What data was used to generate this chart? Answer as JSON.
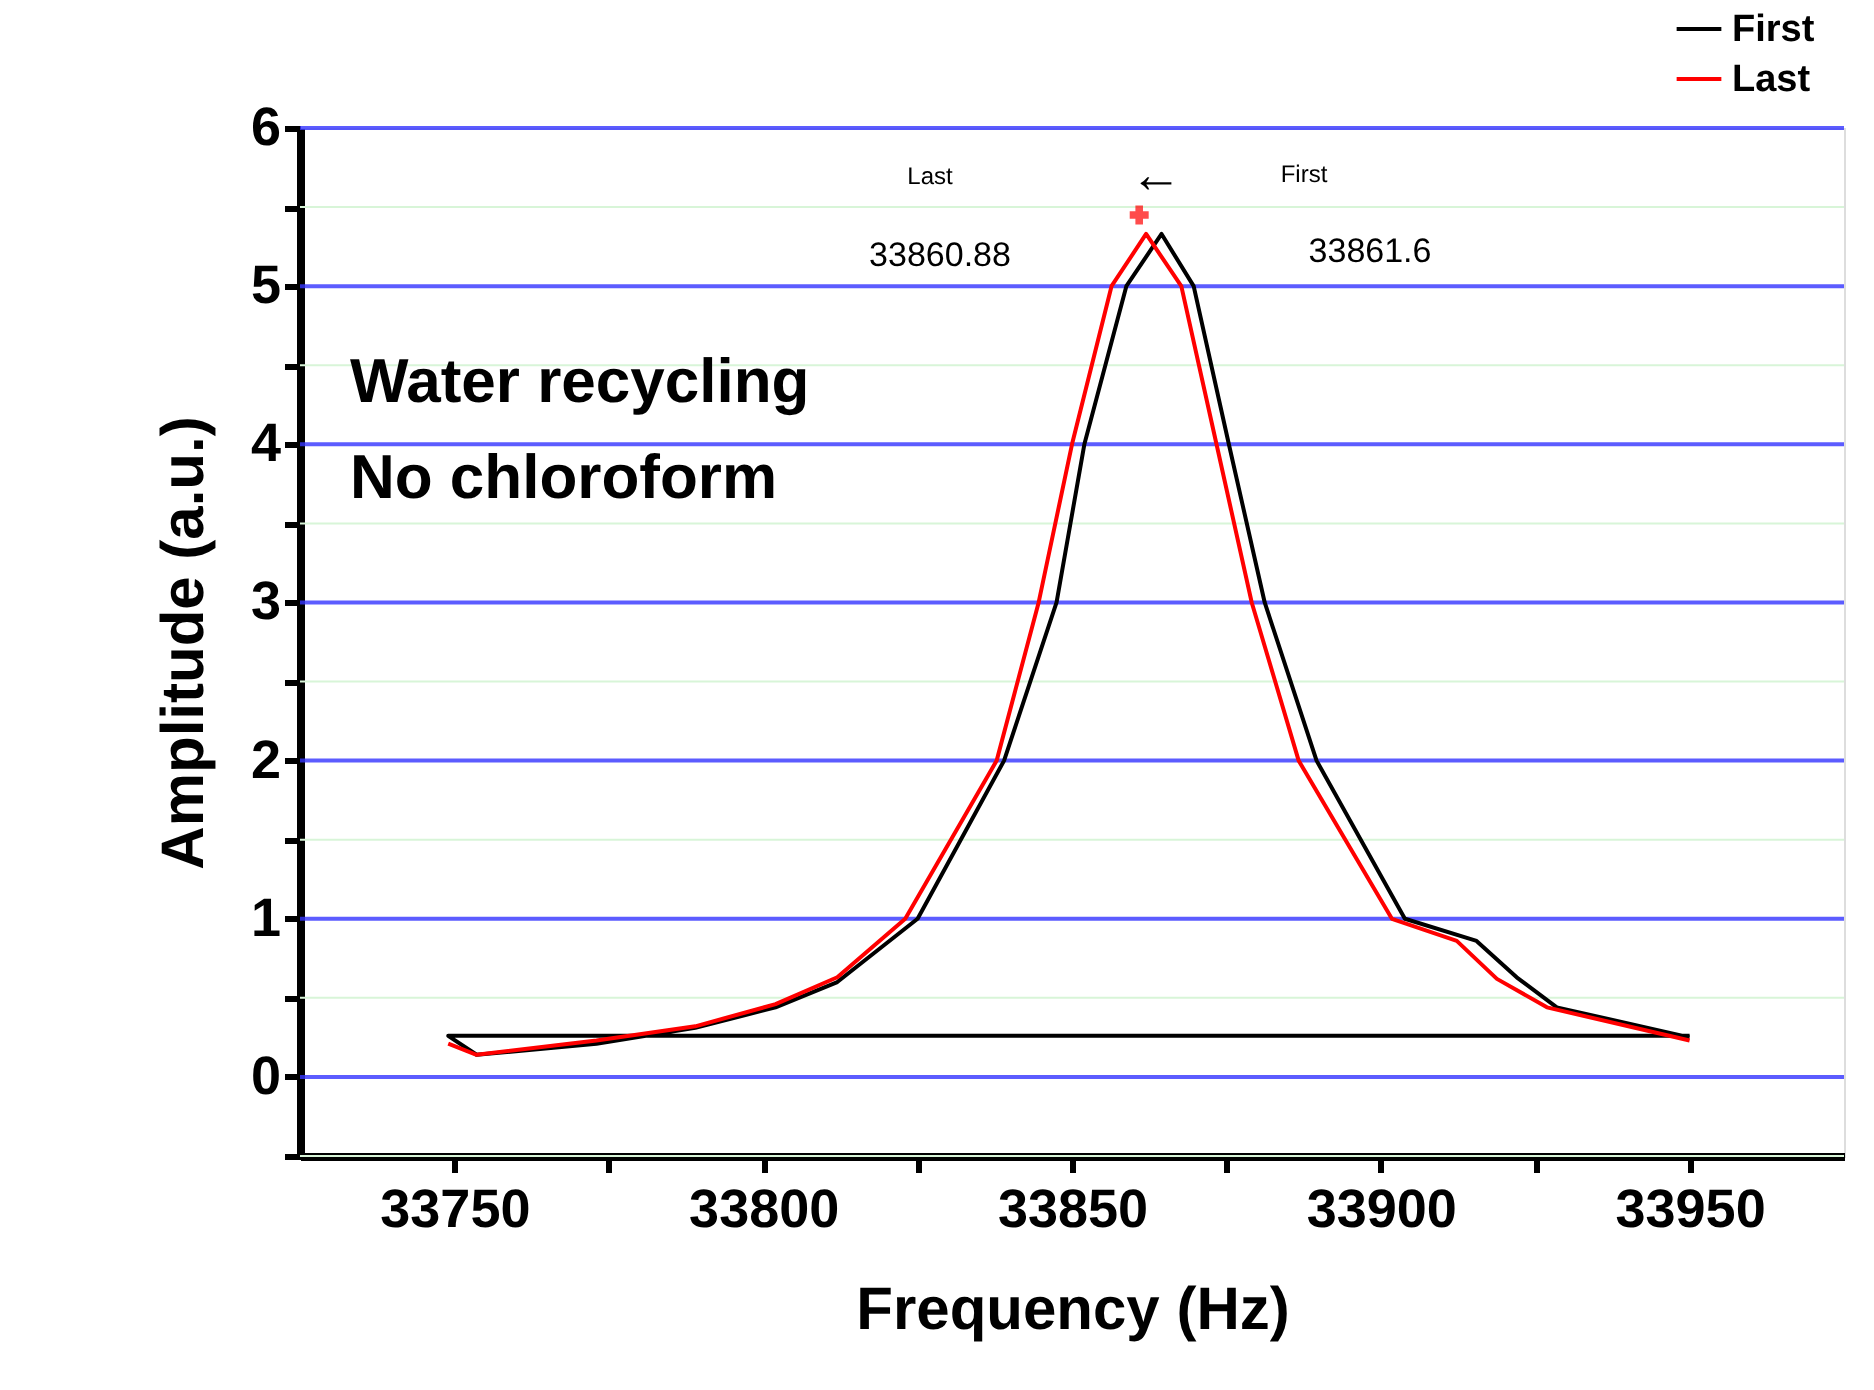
{
  "chart_data": {
    "type": "line",
    "xlabel": "Frequency (Hz)",
    "ylabel": "Amplitude (a.u.)",
    "xlim": [
      33725,
      33975
    ],
    "ylim": [
      -0.5,
      6
    ],
    "xticks": [
      33750,
      {
        "value": 33775,
        "label": null
      },
      33800,
      {
        "value": 33825,
        "label": null
      },
      33850,
      {
        "value": 33875,
        "label": null
      },
      33900,
      {
        "value": 33925,
        "label": null
      },
      33950
    ],
    "yticks": [
      {
        "value": -0.5,
        "label": null
      },
      0,
      {
        "value": 0.5,
        "label": null
      },
      1,
      {
        "value": 1.5,
        "label": null
      },
      2,
      {
        "value": 2.5,
        "label": null
      },
      3,
      {
        "value": 3.5,
        "label": null
      },
      4,
      {
        "value": 4.5,
        "label": null
      },
      5,
      {
        "value": 5.5,
        "label": null
      },
      6
    ],
    "grid": "y",
    "legend": "top right",
    "marker": "none",
    "line_style": "solid",
    "series": [
      {
        "name": "First",
        "color": "#000000",
        "x": [
          33950,
          33749,
          33753.6,
          33773,
          33789,
          33802,
          33812,
          33825,
          33839,
          33847.5,
          33852,
          33858.8,
          33864.5,
          33869.7,
          33875.4,
          33881.2,
          33889.6,
          33903.9,
          33915.5,
          33922,
          33928.5,
          33950
        ],
        "values": [
          0.26,
          0.26,
          0.14,
          0.21,
          0.31,
          0.44,
          0.6,
          1.0,
          2.0,
          3.0,
          4.0,
          5.0,
          5.33,
          5.0,
          4.0,
          3.0,
          2.0,
          1.0,
          0.86,
          0.63,
          0.44,
          0.25
        ]
      },
      {
        "name": "Last",
        "color": "#ff0000",
        "x": [
          33749,
          33753.6,
          33773,
          33789,
          33802,
          33812,
          33823,
          33837.8,
          33844.6,
          33850,
          33856.4,
          33862,
          33867.7,
          33873.4,
          33879.1,
          33886.7,
          33901.8,
          33912.3,
          33918.8,
          33926.9,
          33950
        ],
        "values": [
          0.21,
          0.14,
          0.23,
          0.32,
          0.46,
          0.63,
          1.0,
          2.0,
          3.0,
          4.0,
          5.0,
          5.33,
          5.0,
          4.0,
          3.0,
          2.0,
          1.0,
          0.86,
          0.62,
          0.44,
          0.23
        ]
      },
      {
        "type": "scatter",
        "marker": "cross",
        "color": "#ff0000",
        "x": [
          33860.88
        ],
        "values": [
          5.45
        ]
      }
    ],
    "annotations": [
      "Last",
      "First",
      "←",
      "33860.88",
      "33861.6",
      "Water recycling",
      "No chloroform"
    ]
  }
}
